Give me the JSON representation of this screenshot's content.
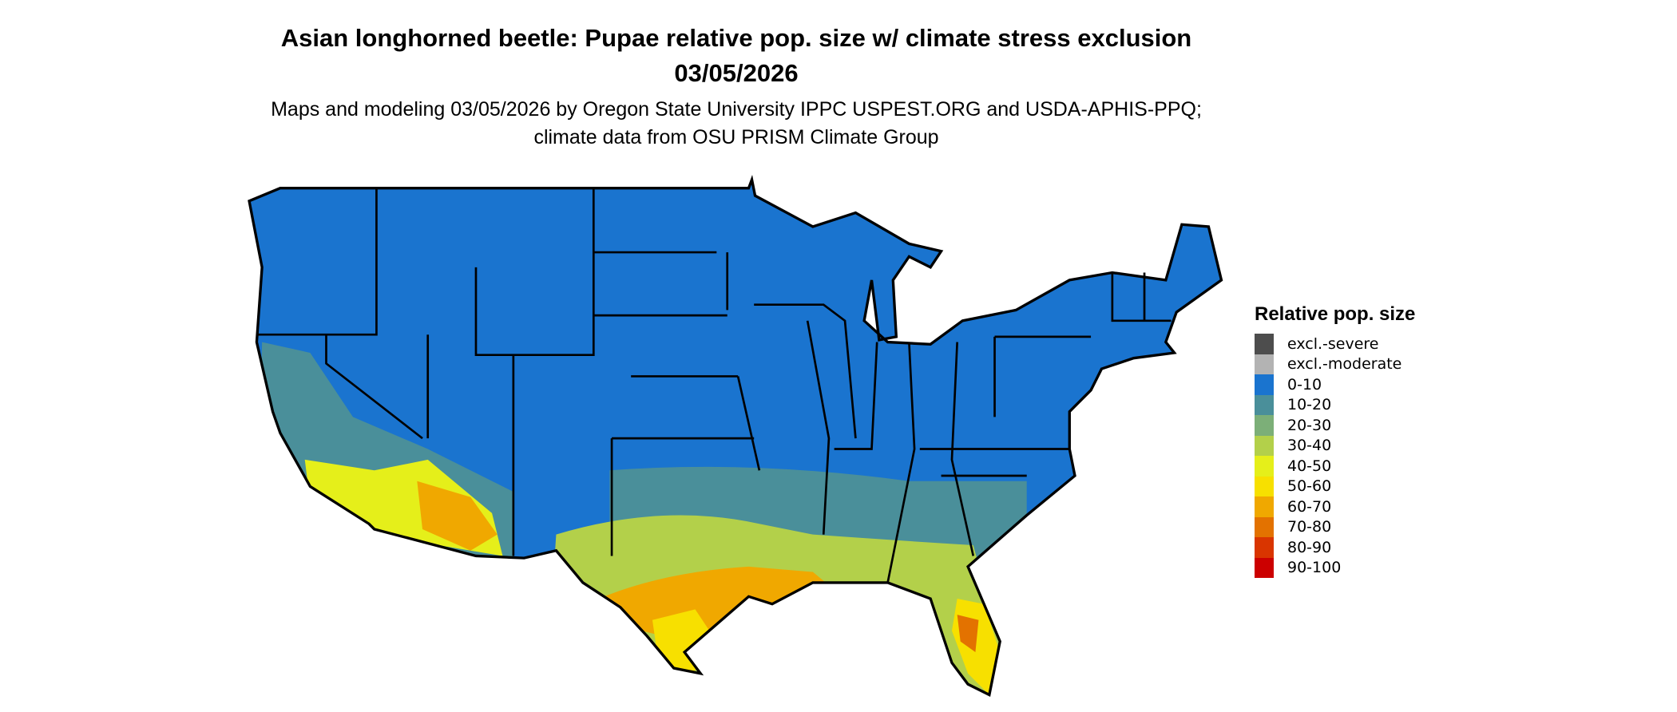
{
  "title": "Asian longhorned beetle: Pupae relative pop. size w/ climate stress exclusion 03/05/2026",
  "subtitle": "Maps and modeling 03/05/2026 by Oregon State University IPPC USPEST.ORG and USDA-APHIS-PPQ; climate data from OSU PRISM Climate Group",
  "legend": {
    "title": "Relative pop. size",
    "items": [
      {
        "label": "excl.-severe",
        "color": "#4d4d4d"
      },
      {
        "label": "excl.-moderate",
        "color": "#b3b3b3"
      },
      {
        "label": "0-10",
        "color": "#1a74cf"
      },
      {
        "label": "10-20",
        "color": "#4a8f9a"
      },
      {
        "label": "20-30",
        "color": "#7caf78"
      },
      {
        "label": "30-40",
        "color": "#b3d04a"
      },
      {
        "label": "40-50",
        "color": "#e5ef1a"
      },
      {
        "label": "50-60",
        "color": "#f7e000"
      },
      {
        "label": "60-70",
        "color": "#f0a800"
      },
      {
        "label": "70-80",
        "color": "#e37200"
      },
      {
        "label": "80-90",
        "color": "#d93500"
      },
      {
        "label": "90-100",
        "color": "#cc0000"
      }
    ]
  }
}
